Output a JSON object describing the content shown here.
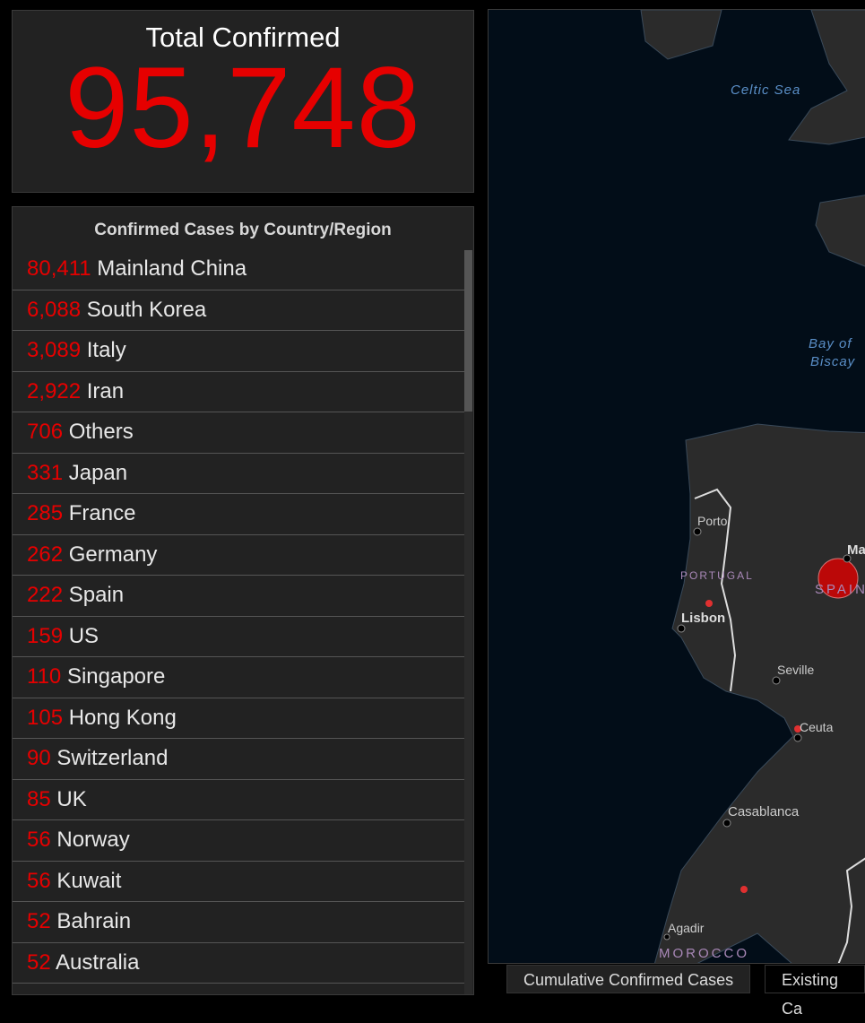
{
  "total": {
    "title": "Total Confirmed",
    "value": "95,748"
  },
  "list": {
    "title": "Confirmed Cases by Country/Region",
    "items": [
      {
        "count": "80,411",
        "name": "Mainland China"
      },
      {
        "count": "6,088",
        "name": "South Korea"
      },
      {
        "count": "3,089",
        "name": "Italy"
      },
      {
        "count": "2,922",
        "name": "Iran"
      },
      {
        "count": "706",
        "name": "Others"
      },
      {
        "count": "331",
        "name": "Japan"
      },
      {
        "count": "285",
        "name": "France"
      },
      {
        "count": "262",
        "name": "Germany"
      },
      {
        "count": "222",
        "name": "Spain"
      },
      {
        "count": "159",
        "name": "US"
      },
      {
        "count": "110",
        "name": "Singapore"
      },
      {
        "count": "105",
        "name": "Hong Kong"
      },
      {
        "count": "90",
        "name": "Switzerland"
      },
      {
        "count": "85",
        "name": "UK"
      },
      {
        "count": "56",
        "name": "Norway"
      },
      {
        "count": "56",
        "name": "Kuwait"
      },
      {
        "count": "52",
        "name": "Bahrain"
      },
      {
        "count": "52",
        "name": "Australia"
      }
    ]
  },
  "map": {
    "labels": {
      "celtic": "Celtic Sea",
      "biscay1": "Bay of",
      "biscay2": "Biscay",
      "porto": "Porto",
      "portugal": "PORTUGAL",
      "lisbon": "Lisbon",
      "seville": "Seville",
      "ceuta": "Ceuta",
      "casablanca": "Casablanca",
      "agadir": "Agadir",
      "morocco": "MOROCCO",
      "spain": "SPAIN",
      "madrid": "Ma"
    },
    "colors": {
      "water": "#020d18",
      "land": "#2b2b2b",
      "case_marker": "#e00000"
    }
  },
  "tabs": [
    {
      "label": "Cumulative Confirmed Cases"
    },
    {
      "label": "Existing Ca"
    }
  ]
}
